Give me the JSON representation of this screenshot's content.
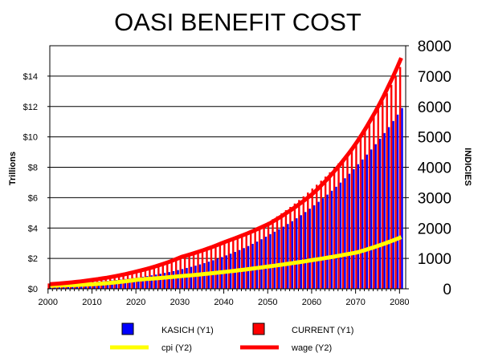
{
  "chart_data": {
    "type": "bar",
    "title": "OASI BENEFIT COST",
    "ylabel": "Trillions",
    "y2label": "INDICIES",
    "xlim": [
      2000,
      2081
    ],
    "ylim": [
      0,
      16
    ],
    "y2lim": [
      0,
      8000
    ],
    "x_ticks": [
      "2000",
      "2010",
      "2020",
      "2030",
      "2040",
      "2050",
      "2060",
      "2070",
      "2080"
    ],
    "y_ticks": [
      "$0",
      "$2",
      "$4",
      "$6",
      "$8",
      "$10",
      "$12",
      "$14"
    ],
    "y2_ticks": [
      "0",
      "1000",
      "2000",
      "3000",
      "4000",
      "5000",
      "6000",
      "7000",
      "8000"
    ],
    "grid": true,
    "legend_position": "bottom",
    "colors": {
      "kasich": "#0000ff",
      "current": "#ff0000",
      "cpi": "#ffff00",
      "wage": "#ff0000"
    },
    "series": [
      {
        "name": "KASICH (Y1)",
        "type": "bar",
        "axis": "y1",
        "key_years": [
          2000,
          2010,
          2020,
          2030,
          2040,
          2050,
          2060,
          2070,
          2080
        ],
        "key_values": [
          0.3,
          0.45,
          0.75,
          1.3,
          2.2,
          3.6,
          5.5,
          8.2,
          11.9
        ]
      },
      {
        "name": "CURRENT (Y1)",
        "type": "bar",
        "axis": "y1",
        "key_years": [
          2000,
          2010,
          2020,
          2030,
          2040,
          2050,
          2060,
          2070,
          2080
        ],
        "key_values": [
          0.35,
          0.6,
          1.1,
          2.0,
          3.1,
          4.4,
          6.6,
          9.6,
          14.6
        ]
      },
      {
        "name": "cpi (Y2)",
        "type": "line",
        "axis": "y2",
        "key_years": [
          2000,
          2010,
          2020,
          2030,
          2040,
          2050,
          2060,
          2070,
          2080
        ],
        "key_values": [
          100,
          150,
          300,
          420,
          560,
          740,
          950,
          1200,
          1700
        ]
      },
      {
        "name": "wage (Y2)",
        "type": "line",
        "axis": "y2",
        "key_years": [
          2000,
          2010,
          2020,
          2030,
          2040,
          2050,
          2060,
          2070,
          2080
        ],
        "key_values": [
          150,
          300,
          580,
          1050,
          1550,
          2150,
          3150,
          4850,
          7600
        ]
      }
    ]
  }
}
